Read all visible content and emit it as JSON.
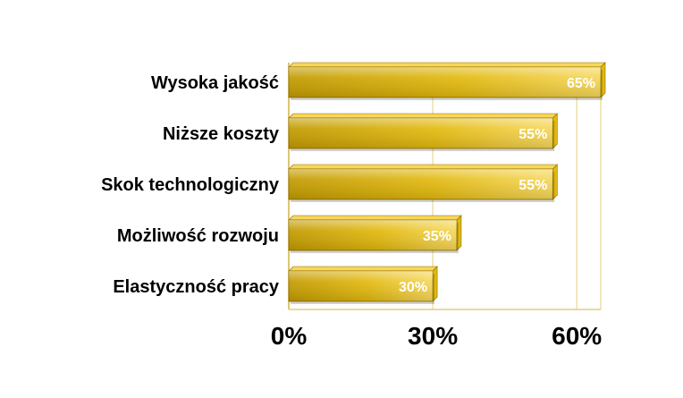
{
  "chart_data": {
    "type": "bar",
    "orientation": "horizontal",
    "categories": [
      "Wysoka jakość",
      "Niższe koszty",
      "Skok technologiczny",
      "Możliwość rozwoju",
      "Elastyczność pracy"
    ],
    "values": [
      65,
      55,
      55,
      35,
      30
    ],
    "value_labels": [
      "65%",
      "55%",
      "55%",
      "35%",
      "30%"
    ],
    "x_ticks": [
      {
        "value": 0,
        "label": "0%"
      },
      {
        "value": 30,
        "label": "30%"
      },
      {
        "value": 60,
        "label": "60%"
      }
    ],
    "xlim": [
      0,
      65
    ],
    "grid": true,
    "legend": "none",
    "title": "",
    "xlabel": "",
    "ylabel": "",
    "colors": {
      "bar_dark": "#c29a00",
      "bar_mid": "#e2b90e",
      "bar_light": "#f6d75a",
      "bar_edge": "#8a6b00",
      "grid": "#e6cf7a",
      "axis": "#d2b347",
      "value_text": "#ffffff",
      "label_text": "#000000"
    }
  }
}
